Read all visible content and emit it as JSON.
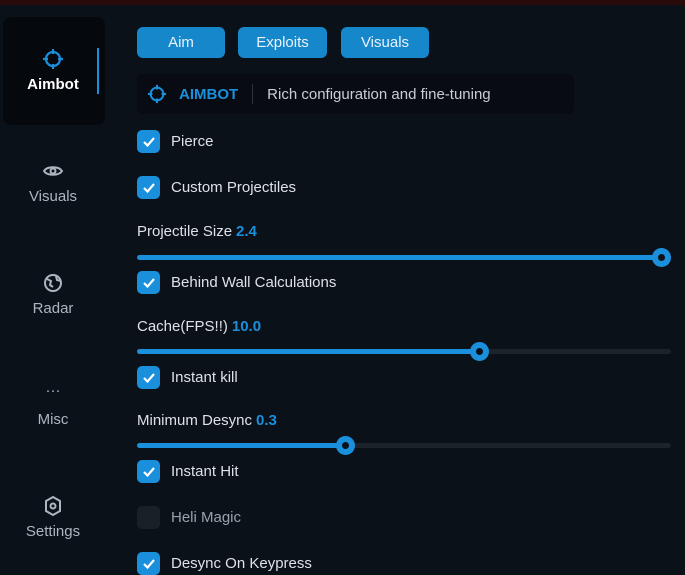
{
  "sidebar": {
    "items": [
      {
        "label": "Aimbot",
        "icon": "crosshair-icon",
        "active": true
      },
      {
        "label": "Visuals",
        "icon": "eye-icon"
      },
      {
        "label": "Radar",
        "icon": "globe-icon"
      },
      {
        "label": "Misc",
        "icon": "ellipsis-icon"
      },
      {
        "label": "Settings",
        "icon": "gear-icon"
      }
    ]
  },
  "tabs": [
    "Aim",
    "Exploits",
    "Visuals"
  ],
  "header": {
    "title": "AIMBOT",
    "description": "Rich configuration and fine-tuning"
  },
  "options": {
    "pierce": {
      "label": "Pierce",
      "checked": true
    },
    "custom_projectiles": {
      "label": "Custom Projectiles",
      "checked": true
    },
    "projectile_size": {
      "label": "Projectile Size",
      "value": "2.4",
      "fraction": 1.0
    },
    "behind_wall": {
      "label": "Behind Wall Calculations",
      "checked": true
    },
    "cache": {
      "label": "Cache(FPS!!)",
      "value": "10.0",
      "fraction": 0.64
    },
    "instant_kill": {
      "label": "Instant kill",
      "checked": true
    },
    "min_desync": {
      "label": "Minimum Desync",
      "value": "0.3",
      "fraction": 0.39
    },
    "instant_hit": {
      "label": "Instant Hit",
      "checked": true
    },
    "heli_magic": {
      "label": "Heli Magic",
      "checked": false
    },
    "desync_keypress": {
      "label": "Desync On Keypress",
      "checked": true
    }
  },
  "colors": {
    "accent": "#1a8fdc",
    "background": "#0b1119"
  }
}
